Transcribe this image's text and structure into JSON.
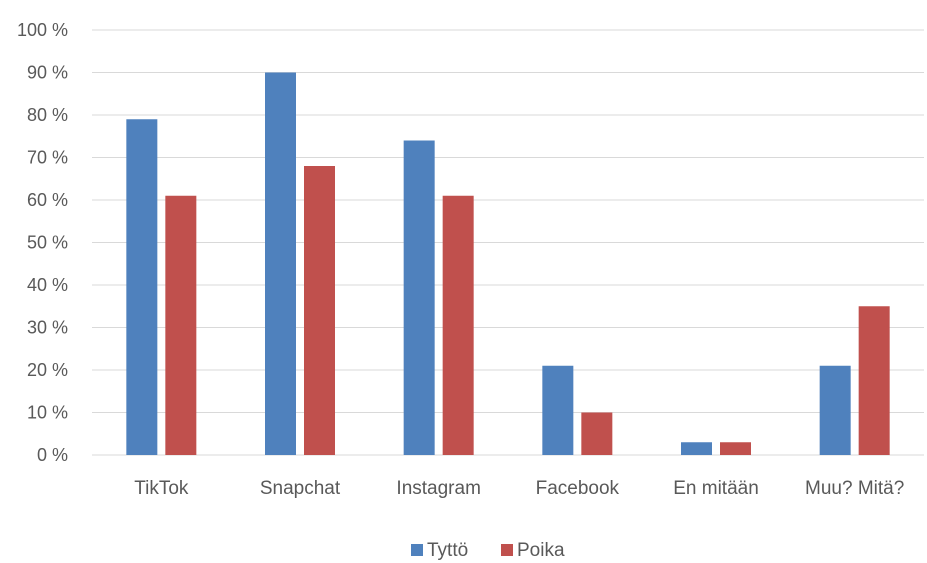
{
  "chart_data": {
    "type": "bar",
    "categories": [
      "TikTok",
      "Snapchat",
      "Instagram",
      "Facebook",
      "En mitään",
      "Muu? Mitä?"
    ],
    "series": [
      {
        "name": "Tyttö",
        "values": [
          79,
          90,
          74,
          21,
          3,
          21
        ],
        "color": "#4f81bd"
      },
      {
        "name": "Poika",
        "values": [
          61,
          68,
          61,
          10,
          3,
          35
        ],
        "color": "#c0504d"
      }
    ],
    "y_ticks": [
      "0 %",
      "10 %",
      "20 %",
      "30 %",
      "40 %",
      "50 %",
      "60 %",
      "70 %",
      "80 %",
      "90 %",
      "100 %"
    ],
    "ylim": [
      0,
      100
    ],
    "grid": true,
    "legend_position": "bottom"
  }
}
